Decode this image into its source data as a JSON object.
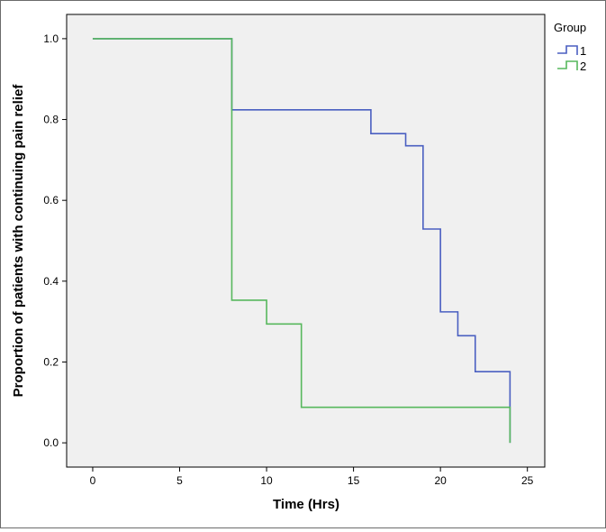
{
  "chart_data": {
    "type": "line",
    "step": true,
    "xlabel": "Time (Hrs)",
    "ylabel": "Proportion of patients with continuing pain relief",
    "xlim": [
      -1.5,
      26
    ],
    "ylim": [
      -0.06,
      1.06
    ],
    "x_ticks": [
      0,
      5,
      10,
      15,
      20,
      25
    ],
    "y_ticks": [
      0.0,
      0.2,
      0.4,
      0.6,
      0.8,
      1.0
    ],
    "y_tick_labels": [
      "0.0",
      "0.2",
      "0.4",
      "0.6",
      "0.8",
      "1.0"
    ],
    "grid": false,
    "plot_background": "#f0f0f0",
    "legend": {
      "title": "Group",
      "position": "top-right"
    },
    "series": [
      {
        "name": "1",
        "color": "#4a5fc1",
        "points": [
          [
            0,
            1.0
          ],
          [
            8,
            0.824
          ],
          [
            16,
            0.765
          ],
          [
            18,
            0.735
          ],
          [
            19,
            0.529
          ],
          [
            20,
            0.324
          ],
          [
            21,
            0.265
          ],
          [
            22,
            0.176
          ],
          [
            24,
            0.0
          ]
        ]
      },
      {
        "name": "2",
        "color": "#57b85d",
        "points": [
          [
            0,
            1.0
          ],
          [
            8,
            0.353
          ],
          [
            10,
            0.294
          ],
          [
            12,
            0.088
          ],
          [
            24,
            0.0
          ]
        ]
      }
    ]
  }
}
